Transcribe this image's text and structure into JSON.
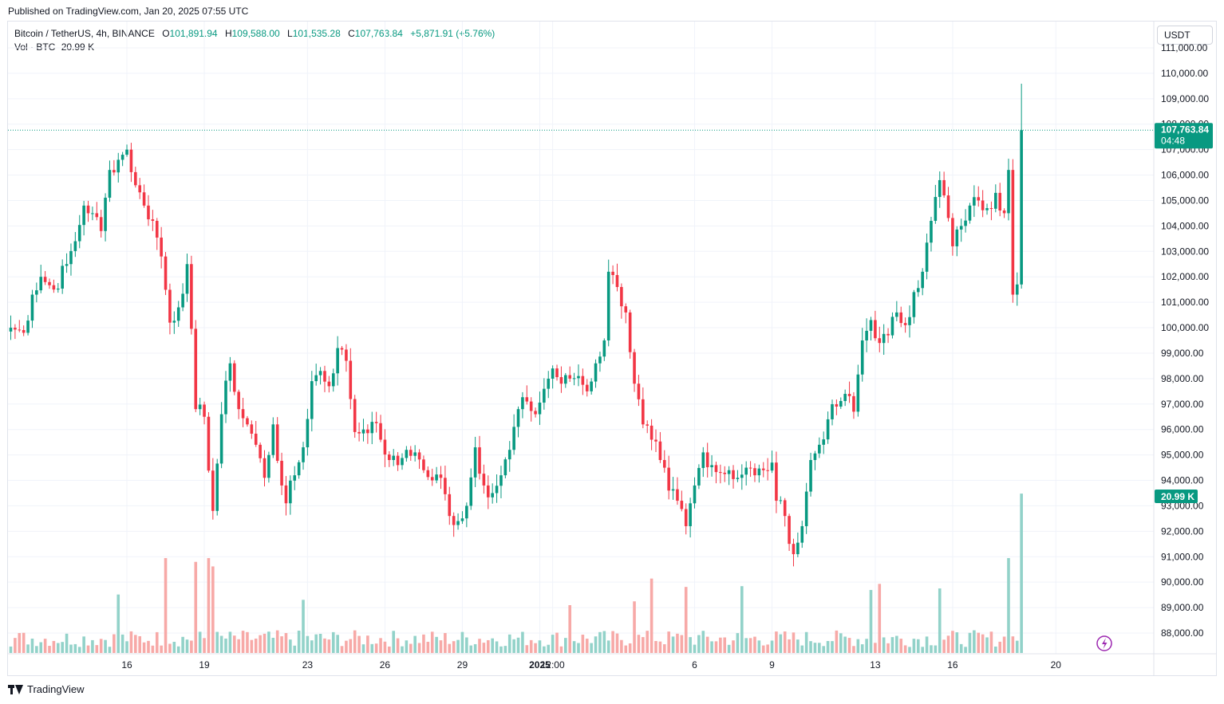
{
  "header": {
    "published": "Published on TradingView.com, Jan 20, 2025 07:55 UTC"
  },
  "legend": {
    "symbol": "Bitcoin / TetherUS, 4h, BINANCE",
    "o_label": "O",
    "o": "101,891.94",
    "h_label": "H",
    "h": "109,588.00",
    "l_label": "L",
    "l": "101,535.28",
    "c_label": "C",
    "c": "107,763.84",
    "change": "+5,871.91 (+5.76%)",
    "vol_label": "Vol · BTC",
    "vol": "20.99 K"
  },
  "currency": "USDT",
  "price_badge": {
    "price": "107,763.84",
    "countdown": "04:48"
  },
  "volume_badge": "20.99 K",
  "brand": "TradingView",
  "colors": {
    "up": "#089981",
    "down": "#f23645",
    "up_vol": "#92d2c9",
    "down_vol": "#f7a9a7",
    "grid": "#f0f3fa"
  },
  "chart_data": {
    "type": "candlestick",
    "interval": "4h",
    "y_axis": {
      "min": 87500,
      "max": 111000,
      "ticks": [
        "88,000.00",
        "89,000.00",
        "90,000.00",
        "91,000.00",
        "92,000.00",
        "93,000.00",
        "94,000.00",
        "95,000.00",
        "96,000.00",
        "97,000.00",
        "98,000.00",
        "99,000.00",
        "100,000.00",
        "101,000.00",
        "102,000.00",
        "103,000.00",
        "104,000.00",
        "105,000.00",
        "106,000.00",
        "107,000.00",
        "108,000.00",
        "109,000.00",
        "110,000.00",
        "111,000.00"
      ]
    },
    "x_axis": {
      "ticks": [
        {
          "label": "16",
          "bar": 27
        },
        {
          "label": "19",
          "bar": 45
        },
        {
          "label": "23",
          "bar": 69
        },
        {
          "label": "26",
          "bar": 87
        },
        {
          "label": "29",
          "bar": 105
        },
        {
          "label": "2025",
          "bar": 123
        },
        {
          "label": "12:00",
          "bar": 126
        },
        {
          "label": "6",
          "bar": 159
        },
        {
          "label": "9",
          "bar": 177
        },
        {
          "label": "13",
          "bar": 201
        },
        {
          "label": "16",
          "bar": 219
        },
        {
          "label": "20",
          "bar": 243
        }
      ]
    },
    "last_price": 107763.84,
    "anchors": [
      [
        0,
        100000
      ],
      [
        3,
        99800
      ],
      [
        5,
        101300
      ],
      [
        7,
        102000
      ],
      [
        10,
        101500
      ],
      [
        13,
        102500
      ],
      [
        15,
        103400
      ],
      [
        17,
        104800
      ],
      [
        19,
        104500
      ],
      [
        21,
        103800
      ],
      [
        23,
        106200
      ],
      [
        25,
        106600
      ],
      [
        27,
        107000
      ],
      [
        29,
        105600
      ],
      [
        31,
        104800
      ],
      [
        33,
        104200
      ],
      [
        35,
        102800
      ],
      [
        37,
        100200
      ],
      [
        39,
        100800
      ],
      [
        41,
        102500
      ],
      [
        43,
        96800
      ],
      [
        45,
        96500
      ],
      [
        47,
        92800
      ],
      [
        49,
        96600
      ],
      [
        51,
        98600
      ],
      [
        53,
        96800
      ],
      [
        55,
        96200
      ],
      [
        57,
        95400
      ],
      [
        59,
        94100
      ],
      [
        61,
        96200
      ],
      [
        63,
        93800
      ],
      [
        64,
        93100
      ],
      [
        66,
        94200
      ],
      [
        68,
        95300
      ],
      [
        70,
        97900
      ],
      [
        72,
        98300
      ],
      [
        74,
        97700
      ],
      [
        76,
        99200
      ],
      [
        78,
        98700
      ],
      [
        80,
        95900
      ],
      [
        82,
        96000
      ],
      [
        84,
        96300
      ],
      [
        86,
        95600
      ],
      [
        88,
        94800
      ],
      [
        90,
        94600
      ],
      [
        92,
        95200
      ],
      [
        94,
        95100
      ],
      [
        96,
        94400
      ],
      [
        98,
        94000
      ],
      [
        100,
        94100
      ],
      [
        102,
        92600
      ],
      [
        104,
        92400
      ],
      [
        106,
        93000
      ],
      [
        108,
        95300
      ],
      [
        110,
        93800
      ],
      [
        112,
        93500
      ],
      [
        114,
        94200
      ],
      [
        116,
        95200
      ],
      [
        118,
        96800
      ],
      [
        120,
        97100
      ],
      [
        122,
        96600
      ],
      [
        124,
        97600
      ],
      [
        126,
        98400
      ],
      [
        128,
        97800
      ],
      [
        130,
        98000
      ],
      [
        132,
        98100
      ],
      [
        134,
        97500
      ],
      [
        136,
        98600
      ],
      [
        138,
        99500
      ],
      [
        139,
        102200
      ],
      [
        141,
        101600
      ],
      [
        143,
        100600
      ],
      [
        145,
        97800
      ],
      [
        147,
        96200
      ],
      [
        149,
        95600
      ],
      [
        151,
        94800
      ],
      [
        153,
        93600
      ],
      [
        155,
        93200
      ],
      [
        157,
        92200
      ],
      [
        159,
        93800
      ],
      [
        161,
        95100
      ],
      [
        163,
        94600
      ],
      [
        165,
        94300
      ],
      [
        167,
        94400
      ],
      [
        169,
        94100
      ],
      [
        171,
        94500
      ],
      [
        173,
        94200
      ],
      [
        175,
        94400
      ],
      [
        177,
        94700
      ],
      [
        178,
        93200
      ],
      [
        180,
        92600
      ],
      [
        182,
        91100
      ],
      [
        184,
        92200
      ],
      [
        186,
        94800
      ],
      [
        188,
        95400
      ],
      [
        190,
        96400
      ],
      [
        192,
        96900
      ],
      [
        194,
        97400
      ],
      [
        196,
        96700
      ],
      [
        198,
        99500
      ],
      [
        200,
        100300
      ],
      [
        202,
        99400
      ],
      [
        204,
        99700
      ],
      [
        206,
        100600
      ],
      [
        208,
        100100
      ],
      [
        210,
        101400
      ],
      [
        212,
        102200
      ],
      [
        214,
        104200
      ],
      [
        216,
        105800
      ],
      [
        217,
        105200
      ],
      [
        219,
        103200
      ],
      [
        221,
        104000
      ],
      [
        223,
        104800
      ],
      [
        225,
        105000
      ],
      [
        227,
        104700
      ],
      [
        229,
        105300
      ],
      [
        231,
        104500
      ],
      [
        232,
        106200
      ],
      [
        233,
        101300
      ],
      [
        234,
        101700
      ],
      [
        235,
        107763.84
      ]
    ],
    "volume_peaks": [
      {
        "bar": 25,
        "volume": 7.7
      },
      {
        "bar": 36,
        "volume": 12.5
      },
      {
        "bar": 43,
        "volume": 12
      },
      {
        "bar": 46,
        "volume": 12.5
      },
      {
        "bar": 47,
        "volume": 11.4
      },
      {
        "bar": 68,
        "volume": 7
      },
      {
        "bar": 130,
        "volume": 6.3
      },
      {
        "bar": 145,
        "volume": 6.8
      },
      {
        "bar": 149,
        "volume": 9.8
      },
      {
        "bar": 157,
        "volume": 8.7
      },
      {
        "bar": 170,
        "volume": 8.8
      },
      {
        "bar": 200,
        "volume": 8.3
      },
      {
        "bar": 202,
        "volume": 9.1
      },
      {
        "bar": 216,
        "volume": 8.5
      },
      {
        "bar": 232,
        "volume": 12.5
      },
      {
        "bar": 235,
        "volume": 20.99
      }
    ],
    "volume_max": 21
  }
}
